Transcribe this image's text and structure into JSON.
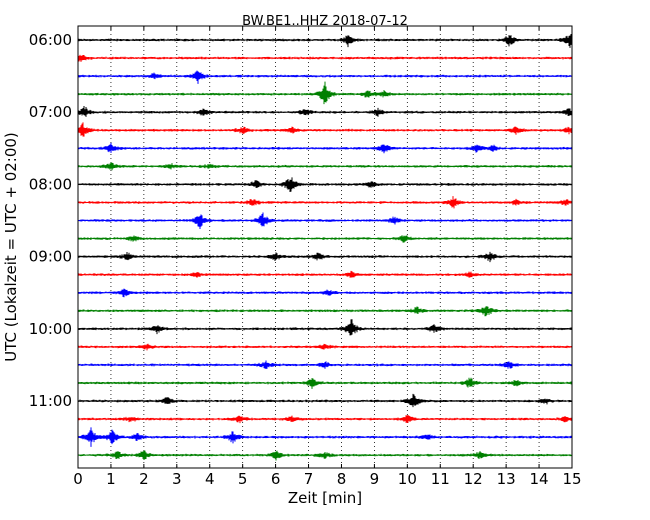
{
  "chart_data": {
    "type": "line",
    "title": "BW.BE1..HHZ 2018-07-12",
    "xlabel": "Zeit  [min]",
    "ylabel": "UTC (Lokalzeit = UTC + 02:00)",
    "xlim": [
      0,
      15
    ],
    "x_ticks": [
      "0",
      "1",
      "2",
      "3",
      "4",
      "5",
      "6",
      "7",
      "8",
      "9",
      "10",
      "11",
      "12",
      "13",
      "14",
      "15"
    ],
    "y_tick_labels": [
      "06:00",
      "07:00",
      "08:00",
      "09:00",
      "10:00",
      "11:00"
    ],
    "vertical_grid": "dotted",
    "line_colors": [
      "#000000",
      "#ff0000",
      "#0000ff",
      "#008000"
    ],
    "rows": [
      {
        "start": "06:00",
        "events": [
          {
            "t": 8.2,
            "a": 6
          },
          {
            "t": 13.1,
            "a": 6
          },
          {
            "t": 14.95,
            "a": 9
          }
        ]
      },
      {
        "start": "06:15",
        "events": [
          {
            "t": 0.1,
            "a": 4
          }
        ]
      },
      {
        "start": "06:30",
        "events": [
          {
            "t": 3.65,
            "a": 7
          },
          {
            "t": 2.3,
            "a": 3
          }
        ]
      },
      {
        "start": "06:45",
        "events": [
          {
            "t": 7.5,
            "a": 12
          },
          {
            "t": 8.8,
            "a": 4
          },
          {
            "t": 9.3,
            "a": 3
          }
        ]
      },
      {
        "start": "07:00",
        "events": [
          {
            "t": 0.2,
            "a": 6
          },
          {
            "t": 3.8,
            "a": 4
          },
          {
            "t": 6.9,
            "a": 4
          },
          {
            "t": 9.1,
            "a": 4
          },
          {
            "t": 14.9,
            "a": 4
          }
        ]
      },
      {
        "start": "07:15",
        "events": [
          {
            "t": 0.15,
            "a": 7
          },
          {
            "t": 5.0,
            "a": 4
          },
          {
            "t": 6.5,
            "a": 3
          },
          {
            "t": 13.3,
            "a": 4
          },
          {
            "t": 14.9,
            "a": 3
          }
        ]
      },
      {
        "start": "07:30",
        "events": [
          {
            "t": 1.0,
            "a": 5
          },
          {
            "t": 9.3,
            "a": 5
          },
          {
            "t": 12.1,
            "a": 4
          },
          {
            "t": 12.6,
            "a": 3
          }
        ]
      },
      {
        "start": "07:45",
        "events": [
          {
            "t": 1.0,
            "a": 4
          },
          {
            "t": 2.8,
            "a": 3
          },
          {
            "t": 4.0,
            "a": 2
          }
        ]
      },
      {
        "start": "08:00",
        "events": [
          {
            "t": 5.4,
            "a": 4
          },
          {
            "t": 6.45,
            "a": 9
          },
          {
            "t": 8.9,
            "a": 3
          }
        ]
      },
      {
        "start": "08:15",
        "events": [
          {
            "t": 5.3,
            "a": 4
          },
          {
            "t": 11.4,
            "a": 6
          },
          {
            "t": 13.3,
            "a": 3
          },
          {
            "t": 14.8,
            "a": 3
          }
        ]
      },
      {
        "start": "08:30",
        "events": [
          {
            "t": 3.7,
            "a": 8
          },
          {
            "t": 5.6,
            "a": 8
          },
          {
            "t": 9.6,
            "a": 4
          }
        ]
      },
      {
        "start": "08:45",
        "events": [
          {
            "t": 1.7,
            "a": 3
          },
          {
            "t": 9.9,
            "a": 4
          }
        ]
      },
      {
        "start": "09:00",
        "events": [
          {
            "t": 1.5,
            "a": 4
          },
          {
            "t": 6.0,
            "a": 4
          },
          {
            "t": 7.3,
            "a": 4
          },
          {
            "t": 12.5,
            "a": 5
          }
        ]
      },
      {
        "start": "09:15",
        "events": [
          {
            "t": 3.6,
            "a": 3
          },
          {
            "t": 8.3,
            "a": 3
          },
          {
            "t": 11.9,
            "a": 3
          }
        ]
      },
      {
        "start": "09:30",
        "events": [
          {
            "t": 1.4,
            "a": 4
          },
          {
            "t": 7.6,
            "a": 3
          }
        ]
      },
      {
        "start": "09:45",
        "events": [
          {
            "t": 10.3,
            "a": 4
          },
          {
            "t": 12.4,
            "a": 7
          }
        ]
      },
      {
        "start": "10:00",
        "events": [
          {
            "t": 2.4,
            "a": 4
          },
          {
            "t": 8.3,
            "a": 11
          },
          {
            "t": 10.8,
            "a": 4
          }
        ]
      },
      {
        "start": "10:15",
        "events": [
          {
            "t": 2.1,
            "a": 3
          },
          {
            "t": 7.5,
            "a": 3
          }
        ]
      },
      {
        "start": "10:30",
        "events": [
          {
            "t": 5.7,
            "a": 4
          },
          {
            "t": 7.5,
            "a": 4
          },
          {
            "t": 13.1,
            "a": 4
          }
        ]
      },
      {
        "start": "10:45",
        "events": [
          {
            "t": 7.1,
            "a": 5
          },
          {
            "t": 11.9,
            "a": 6
          },
          {
            "t": 13.3,
            "a": 3
          }
        ]
      },
      {
        "start": "11:00",
        "events": [
          {
            "t": 2.7,
            "a": 4
          },
          {
            "t": 10.2,
            "a": 8
          },
          {
            "t": 14.2,
            "a": 3
          }
        ]
      },
      {
        "start": "11:15",
        "events": [
          {
            "t": 1.6,
            "a": 3
          },
          {
            "t": 4.9,
            "a": 4
          },
          {
            "t": 6.5,
            "a": 3
          },
          {
            "t": 10.0,
            "a": 4
          },
          {
            "t": 14.8,
            "a": 3
          }
        ]
      },
      {
        "start": "11:30",
        "events": [
          {
            "t": 0.4,
            "a": 9
          },
          {
            "t": 1.05,
            "a": 8
          },
          {
            "t": 1.8,
            "a": 4
          },
          {
            "t": 4.7,
            "a": 6
          },
          {
            "t": 10.6,
            "a": 3
          }
        ]
      },
      {
        "start": "11:45",
        "events": [
          {
            "t": 1.2,
            "a": 4
          },
          {
            "t": 2.0,
            "a": 5
          },
          {
            "t": 6.0,
            "a": 5
          },
          {
            "t": 7.5,
            "a": 3
          },
          {
            "t": 12.2,
            "a": 4
          }
        ]
      }
    ]
  }
}
